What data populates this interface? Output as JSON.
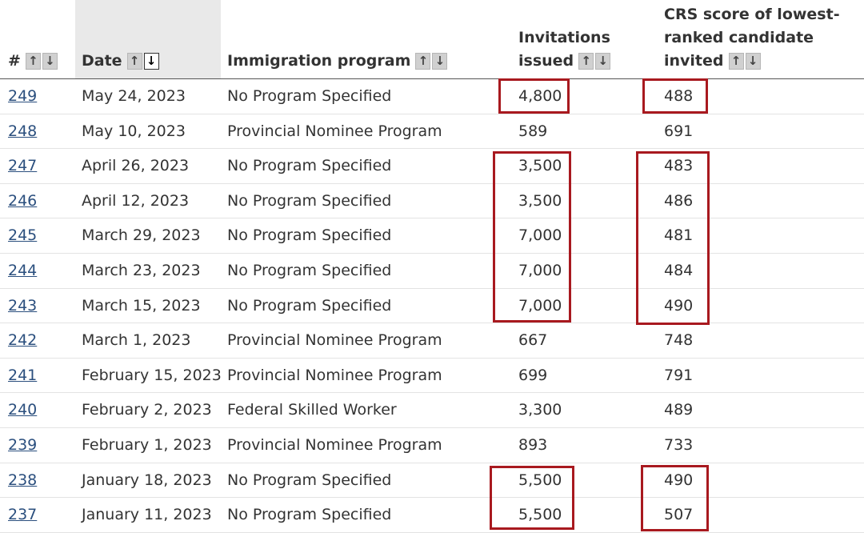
{
  "headers": {
    "num": "#",
    "date": "Date",
    "program": "Immigration program",
    "invitations": [
      "Invitations",
      "issued"
    ],
    "crs": [
      "CRS score of lowest-",
      "ranked candidate",
      "invited"
    ]
  },
  "sort_icons": {
    "up": "↑",
    "down": "↓"
  },
  "highlight_color": "#a8191f",
  "rows": [
    {
      "num": "249",
      "date": "May 24, 2023",
      "program": "No Program Specified",
      "invitations": "4,800",
      "crs": "488"
    },
    {
      "num": "248",
      "date": "May 10, 2023",
      "program": "Provincial Nominee Program",
      "invitations": "589",
      "crs": "691"
    },
    {
      "num": "247",
      "date": "April 26, 2023",
      "program": "No Program Specified",
      "invitations": "3,500",
      "crs": "483"
    },
    {
      "num": "246",
      "date": "April 12, 2023",
      "program": "No Program Specified",
      "invitations": "3,500",
      "crs": "486"
    },
    {
      "num": "245",
      "date": "March 29, 2023",
      "program": "No Program Specified",
      "invitations": "7,000",
      "crs": "481"
    },
    {
      "num": "244",
      "date": "March 23, 2023",
      "program": "No Program Specified",
      "invitations": "7,000",
      "crs": "484"
    },
    {
      "num": "243",
      "date": "March 15, 2023",
      "program": "No Program Specified",
      "invitations": "7,000",
      "crs": "490"
    },
    {
      "num": "242",
      "date": "March 1, 2023",
      "program": "Provincial Nominee Program",
      "invitations": "667",
      "crs": "748"
    },
    {
      "num": "241",
      "date": "February 15, 2023",
      "program": "Provincial Nominee Program",
      "invitations": "699",
      "crs": "791"
    },
    {
      "num": "240",
      "date": "February 2, 2023",
      "program": "Federal Skilled Worker",
      "invitations": "3,300",
      "crs": "489"
    },
    {
      "num": "239",
      "date": "February 1, 2023",
      "program": "Provincial Nominee Program",
      "invitations": "893",
      "crs": "733"
    },
    {
      "num": "238",
      "date": "January 18, 2023",
      "program": "No Program Specified",
      "invitations": "5,500",
      "crs": "490"
    },
    {
      "num": "237",
      "date": "January 11, 2023",
      "program": "No Program Specified",
      "invitations": "5,500",
      "crs": "507"
    }
  ]
}
